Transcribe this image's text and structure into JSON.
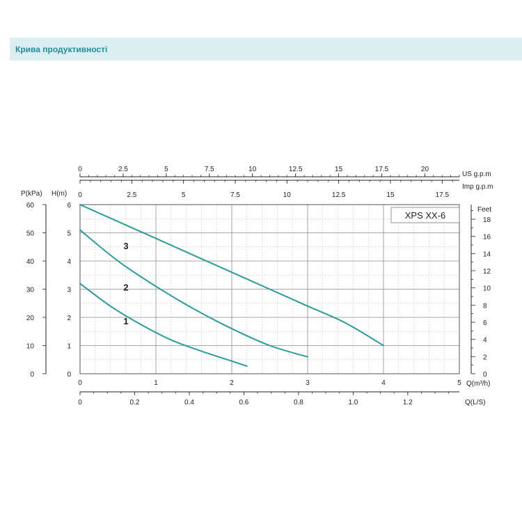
{
  "header": {
    "title": "Крива продуктивності"
  },
  "colors": {
    "header_bg": "#dbeef1",
    "header_text": "#1f8f9c",
    "curve": "#2a9b9b"
  },
  "chart_data": {
    "type": "line",
    "title": "XPS  XX-6",
    "grid": true,
    "axes": {
      "x_primary": {
        "label": "Q(m³/h)",
        "range": [
          0,
          5
        ],
        "ticks": [
          "0",
          "1",
          "2",
          "3",
          "4",
          "5"
        ]
      },
      "x_lps": {
        "label": "Q(L/S)",
        "range": [
          0,
          1.389
        ],
        "ticks": [
          "0",
          "0.2",
          "0.4",
          "0.6",
          "0.8",
          "1.0",
          "1.2"
        ]
      },
      "x_us_gpm": {
        "label": "US  g.p.m",
        "range": [
          0,
          22
        ],
        "ticks": [
          "0",
          "2.5",
          "5",
          "7.5",
          "10",
          "12.5",
          "15",
          "17.5",
          "20"
        ]
      },
      "x_imp_gpm": {
        "label": "Imp  g.p.m",
        "range": [
          0,
          18.33
        ],
        "ticks": [
          "0",
          "2.5",
          "5",
          "7.5",
          "10",
          "12.5",
          "15",
          "17.5"
        ]
      },
      "y_primary": {
        "label": "H(m)",
        "range": [
          0,
          6
        ],
        "ticks": [
          "0",
          "1",
          "2",
          "3",
          "4",
          "5",
          "6"
        ]
      },
      "y_kpa": {
        "label": "P(kPa)",
        "range": [
          0,
          60
        ],
        "ticks": [
          "0",
          "10",
          "20",
          "30",
          "40",
          "50",
          "60"
        ]
      },
      "y_feet": {
        "label": "Feet",
        "range": [
          0,
          19.7
        ],
        "ticks": [
          "0",
          "2",
          "4",
          "6",
          "8",
          "10",
          "12",
          "14",
          "16",
          "18"
        ]
      }
    },
    "series": [
      {
        "name": "1",
        "x": [
          0,
          0.4,
          0.8,
          1.2,
          1.6,
          2.0,
          2.2
        ],
        "y": [
          3.2,
          2.4,
          1.75,
          1.2,
          0.8,
          0.45,
          0.27
        ]
      },
      {
        "name": "2",
        "x": [
          0,
          0.5,
          1.0,
          1.5,
          2.0,
          2.5,
          3.0
        ],
        "y": [
          5.1,
          4.0,
          3.1,
          2.3,
          1.6,
          1.0,
          0.6
        ]
      },
      {
        "name": "3",
        "x": [
          0,
          0.5,
          1.0,
          1.5,
          2.0,
          2.5,
          3.0,
          3.5,
          4.0
        ],
        "y": [
          6.0,
          5.4,
          4.8,
          4.2,
          3.6,
          3.0,
          2.4,
          1.8,
          1.0
        ]
      }
    ]
  }
}
